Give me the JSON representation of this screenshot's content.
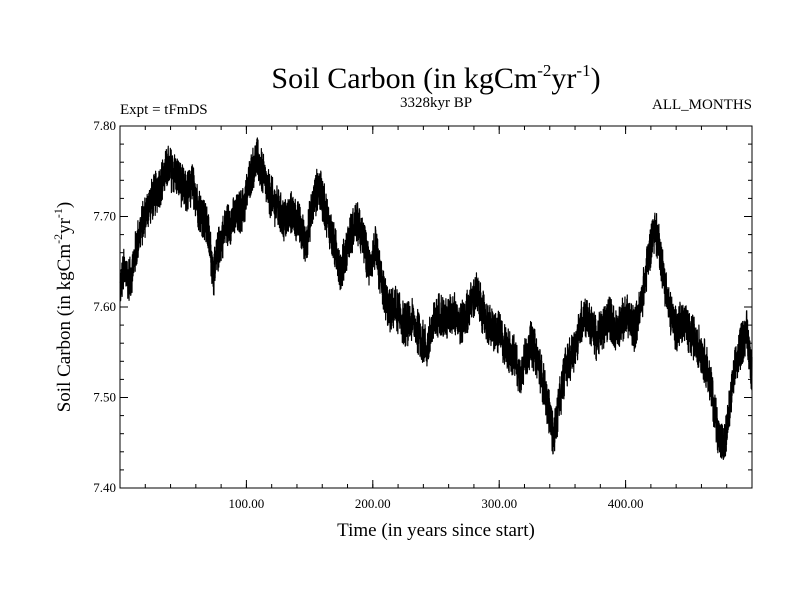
{
  "chart_data": {
    "type": "line",
    "title_main": "Soil Carbon (in kgCm",
    "title_sup1": "-2",
    "title_mid": "yr",
    "title_sup2": "-1",
    "title_end": ")",
    "expt_label": "Expt = tFmDS",
    "period_label": "3328kyr BP",
    "months_label": "ALL_MONTHS",
    "xlabel": "Time (in years since start)",
    "ylabel_main": "Soil Carbon (in kgCm",
    "ylabel_sup1": "-2",
    "ylabel_mid": "yr",
    "ylabel_sup2": "-1",
    "ylabel_end": ")",
    "xlim": [
      0,
      500
    ],
    "ylim": [
      7.4,
      7.8
    ],
    "x_ticks": [
      100,
      200,
      300,
      400
    ],
    "x_tick_labels": [
      "100.00",
      "200.00",
      "300.00",
      "400.00"
    ],
    "y_ticks": [
      7.4,
      7.5,
      7.6,
      7.7,
      7.8
    ],
    "y_tick_labels": [
      "7.40",
      "7.50",
      "7.60",
      "7.70",
      "7.80"
    ],
    "series": [
      {
        "name": "Soil Carbon",
        "color": "#000000",
        "noise_amplitude": 0.025,
        "points": [
          [
            0,
            7.62
          ],
          [
            3,
            7.64
          ],
          [
            8,
            7.63
          ],
          [
            15,
            7.68
          ],
          [
            22,
            7.71
          ],
          [
            30,
            7.73
          ],
          [
            38,
            7.755
          ],
          [
            45,
            7.745
          ],
          [
            52,
            7.725
          ],
          [
            58,
            7.735
          ],
          [
            62,
            7.71
          ],
          [
            66,
            7.7
          ],
          [
            70,
            7.68
          ],
          [
            74,
            7.635
          ],
          [
            78,
            7.665
          ],
          [
            84,
            7.69
          ],
          [
            92,
            7.7
          ],
          [
            98,
            7.71
          ],
          [
            103,
            7.745
          ],
          [
            108,
            7.765
          ],
          [
            112,
            7.75
          ],
          [
            118,
            7.725
          ],
          [
            124,
            7.71
          ],
          [
            130,
            7.695
          ],
          [
            136,
            7.705
          ],
          [
            142,
            7.69
          ],
          [
            147,
            7.67
          ],
          [
            152,
            7.71
          ],
          [
            157,
            7.735
          ],
          [
            163,
            7.705
          ],
          [
            169,
            7.67
          ],
          [
            175,
            7.64
          ],
          [
            181,
            7.675
          ],
          [
            187,
            7.695
          ],
          [
            193,
            7.67
          ],
          [
            197,
            7.645
          ],
          [
            202,
            7.665
          ],
          [
            207,
            7.625
          ],
          [
            213,
            7.595
          ],
          [
            218,
            7.6
          ],
          [
            225,
            7.58
          ],
          [
            232,
            7.585
          ],
          [
            238,
            7.565
          ],
          [
            243,
            7.555
          ],
          [
            248,
            7.58
          ],
          [
            253,
            7.595
          ],
          [
            258,
            7.585
          ],
          [
            264,
            7.595
          ],
          [
            270,
            7.58
          ],
          [
            276,
            7.6
          ],
          [
            282,
            7.615
          ],
          [
            288,
            7.59
          ],
          [
            294,
            7.575
          ],
          [
            300,
            7.57
          ],
          [
            306,
            7.555
          ],
          [
            312,
            7.545
          ],
          [
            316,
            7.525
          ],
          [
            320,
            7.54
          ],
          [
            325,
            7.56
          ],
          [
            330,
            7.545
          ],
          [
            335,
            7.515
          ],
          [
            340,
            7.48
          ],
          [
            343,
            7.455
          ],
          [
            347,
            7.49
          ],
          [
            352,
            7.53
          ],
          [
            357,
            7.545
          ],
          [
            362,
            7.565
          ],
          [
            367,
            7.595
          ],
          [
            372,
            7.58
          ],
          [
            377,
            7.565
          ],
          [
            382,
            7.575
          ],
          [
            387,
            7.59
          ],
          [
            392,
            7.575
          ],
          [
            397,
            7.585
          ],
          [
            402,
            7.59
          ],
          [
            407,
            7.575
          ],
          [
            412,
            7.6
          ],
          [
            417,
            7.645
          ],
          [
            422,
            7.685
          ],
          [
            426,
            7.675
          ],
          [
            430,
            7.635
          ],
          [
            435,
            7.595
          ],
          [
            440,
            7.575
          ],
          [
            445,
            7.585
          ],
          [
            450,
            7.57
          ],
          [
            455,
            7.565
          ],
          [
            460,
            7.55
          ],
          [
            465,
            7.53
          ],
          [
            470,
            7.49
          ],
          [
            474,
            7.455
          ],
          [
            478,
            7.445
          ],
          [
            482,
            7.485
          ],
          [
            487,
            7.535
          ],
          [
            492,
            7.56
          ],
          [
            496,
            7.575
          ],
          [
            500,
            7.525
          ]
        ]
      }
    ]
  }
}
